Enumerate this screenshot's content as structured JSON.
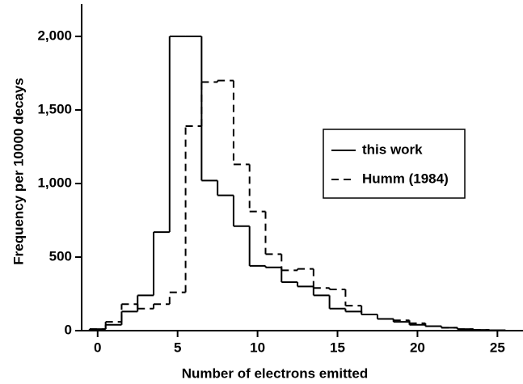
{
  "chart_data": {
    "type": "histogram",
    "xlabel": "Number of electrons emitted",
    "ylabel": "Frequency per 10000 decays",
    "bins": [
      -0.5,
      0.5,
      1.5,
      2.5,
      3.5,
      4.5,
      5.5,
      6.5,
      7.5,
      8.5,
      9.5,
      10.5,
      11.5,
      12.5,
      13.5,
      14.5,
      15.5,
      16.5,
      17.5,
      18.5,
      19.5,
      20.5,
      21.5,
      22.5,
      23.5,
      24.5,
      25.5
    ],
    "series": [
      {
        "name": "this work",
        "color": "#000000",
        "dash": "solid",
        "values": [
          10,
          40,
          130,
          240,
          670,
          2000,
          2000,
          1020,
          920,
          710,
          440,
          430,
          330,
          300,
          240,
          150,
          130,
          110,
          80,
          60,
          40,
          30,
          20,
          10,
          5,
          3
        ]
      },
      {
        "name": "Humm (1984)",
        "color": "#000000",
        "dash": "dashed",
        "values": [
          10,
          60,
          180,
          150,
          180,
          260,
          1390,
          1690,
          1700,
          1130,
          810,
          520,
          410,
          420,
          290,
          280,
          170,
          110,
          80,
          70,
          50,
          30,
          20,
          10,
          5,
          3
        ]
      }
    ],
    "xlim": [
      -1,
      26.6
    ],
    "ylim": [
      0,
      2220
    ],
    "xticks": [
      0,
      5,
      10,
      15,
      20,
      25
    ],
    "yticks": [
      0,
      500,
      {
        "value": 1000,
        "label": "1,000"
      },
      {
        "value": 1500,
        "label": "1,500"
      },
      {
        "value": 2000,
        "label": "2,000"
      }
    ],
    "legend": "right"
  }
}
